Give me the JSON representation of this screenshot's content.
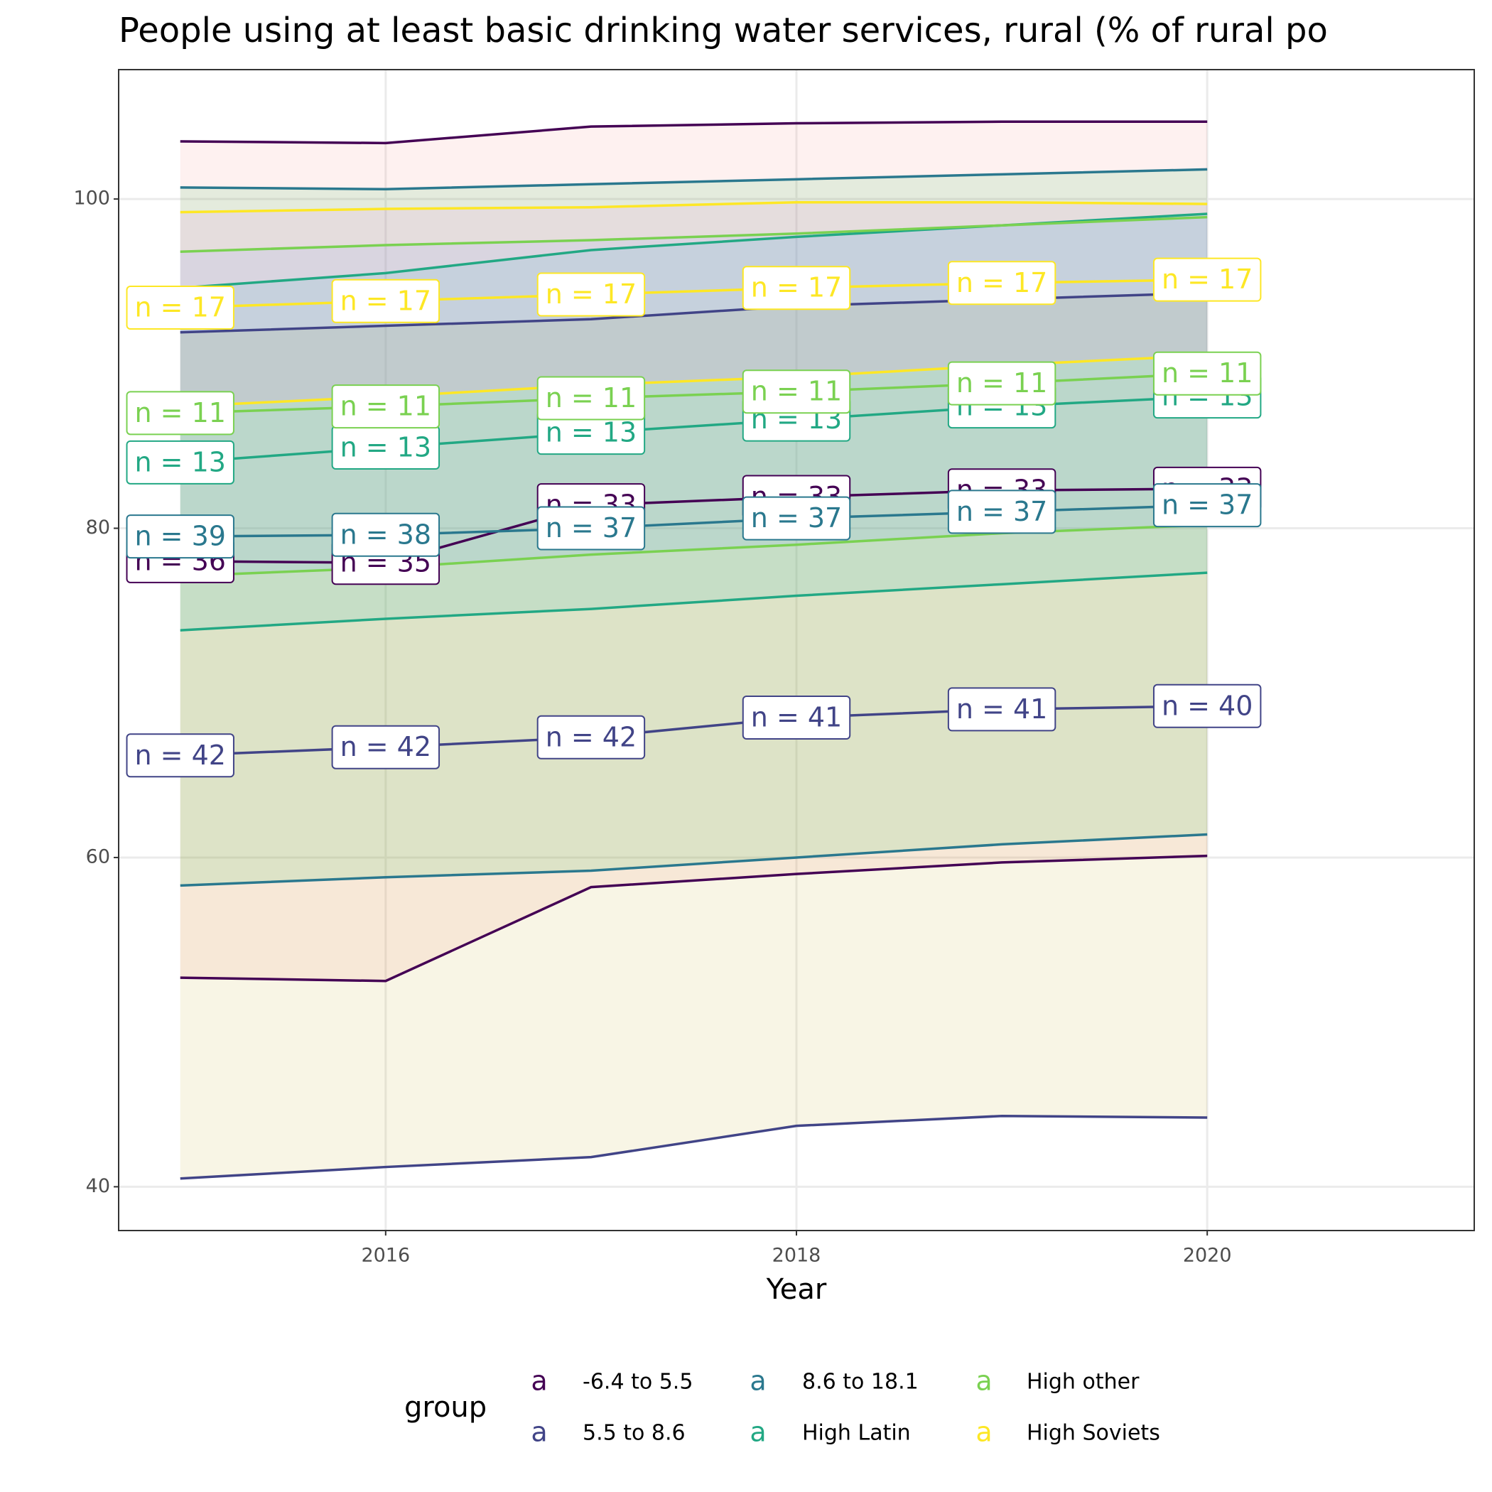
{
  "chart_data": {
    "type": "line",
    "title": "People using at least basic drinking water services, rural (% of rural po",
    "x_label": "Year",
    "legend_title": "group",
    "legend_key_glyph": "a",
    "legend_position": "bottom",
    "grid": true,
    "x": [
      2015,
      2016,
      2017,
      2018,
      2019,
      2020
    ],
    "xlim": [
      2014.7,
      2021.3
    ],
    "xticks": [
      2016,
      2018,
      2020
    ],
    "ylim": [
      37.34,
      107.86
    ],
    "yticks": [
      40,
      60,
      80,
      100
    ],
    "series": [
      {
        "name": "-6.4 to 5.5",
        "color": "#440154",
        "fill": "#F8766D",
        "values": [
          78.0,
          77.9,
          81.4,
          81.9,
          82.3,
          82.4
        ],
        "upper": [
          103.5,
          103.4,
          104.4,
          104.6,
          104.7,
          104.7
        ],
        "lower": [
          52.7,
          52.5,
          58.2,
          59.0,
          59.7,
          60.1
        ],
        "labels": [
          "n = 36",
          "n = 35",
          "n = 33",
          "n = 33",
          "n = 33",
          "n = 33"
        ]
      },
      {
        "name": "5.5 to 8.6",
        "color": "#414487",
        "fill": "#B79F00",
        "values": [
          66.2,
          66.7,
          67.3,
          68.5,
          69.0,
          69.2
        ],
        "upper": [
          91.9,
          92.3,
          92.7,
          93.5,
          93.9,
          94.3
        ],
        "lower": [
          40.5,
          41.2,
          41.8,
          43.7,
          44.3,
          44.2
        ],
        "labels": [
          "n = 42",
          "n = 42",
          "n = 42",
          "n = 41",
          "n = 41",
          "n = 40"
        ]
      },
      {
        "name": "8.6 to 18.1",
        "color": "#2A788E",
        "fill": "#00BA38",
        "values": [
          79.5,
          79.6,
          80.0,
          80.6,
          81.0,
          81.4
        ],
        "upper": [
          100.7,
          100.6,
          100.9,
          101.2,
          101.5,
          101.8
        ],
        "lower": [
          58.3,
          58.8,
          59.2,
          60.0,
          60.8,
          61.4
        ],
        "labels": [
          "n = 39",
          "n = 38",
          "n = 37",
          "n = 37",
          "n = 37",
          "n = 37"
        ]
      },
      {
        "name": "High Latin",
        "color": "#22A884",
        "fill": "#00BFC4",
        "values": [
          84.0,
          84.9,
          85.8,
          86.6,
          87.4,
          88.0
        ],
        "upper": [
          94.6,
          95.5,
          96.9,
          97.7,
          98.4,
          99.1
        ],
        "lower": [
          73.8,
          74.5,
          75.1,
          75.9,
          76.6,
          77.3
        ],
        "labels": [
          "n = 13",
          "n = 13",
          "n = 13",
          "n = 13",
          "n = 13",
          "n = 13"
        ]
      },
      {
        "name": "High other",
        "color": "#7AD151",
        "fill": "#619CFF",
        "values": [
          87.0,
          87.4,
          87.9,
          88.3,
          88.8,
          89.4
        ],
        "upper": [
          96.8,
          97.2,
          97.5,
          97.9,
          98.4,
          98.9
        ],
        "lower": [
          77.1,
          77.6,
          78.4,
          79.0,
          79.7,
          80.2
        ],
        "labels": [
          "n = 11",
          "n = 11",
          "n = 11",
          "n = 11",
          "n = 11",
          "n = 11"
        ]
      },
      {
        "name": "High Soviets",
        "color": "#FDE725",
        "fill": "#F564E3",
        "values": [
          93.4,
          93.8,
          94.2,
          94.6,
          94.9,
          95.1
        ],
        "upper": [
          99.2,
          99.4,
          99.5,
          99.8,
          99.8,
          99.7
        ],
        "lower": [
          87.4,
          88.0,
          88.7,
          89.2,
          89.9,
          90.5
        ],
        "labels": [
          "n = 17",
          "n = 17",
          "n = 17",
          "n = 17",
          "n = 17",
          "n = 17"
        ]
      }
    ]
  }
}
